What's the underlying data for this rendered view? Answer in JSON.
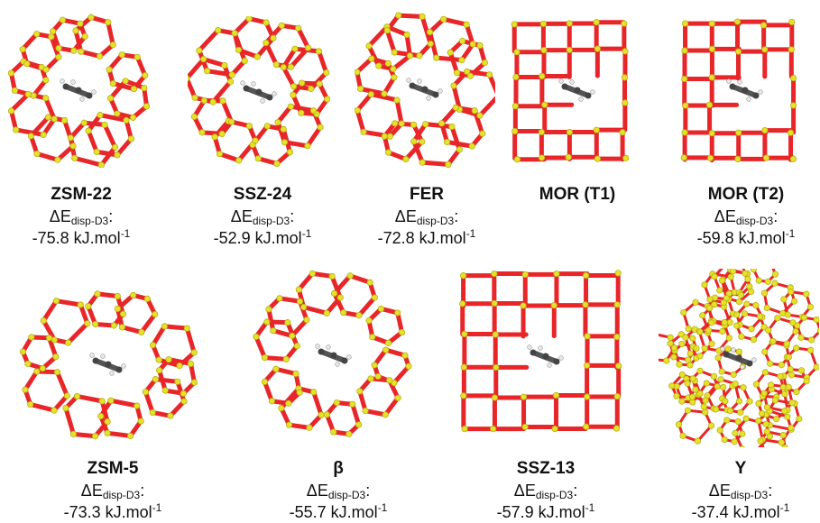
{
  "panels": [
    {
      "name": "ZSM-22",
      "energy_label": "ΔE",
      "energy_sub": "disp-D3",
      "colon": ":",
      "value": "-75.8 kJ.mol",
      "unit_exp": "-1"
    },
    {
      "name": "SSZ-24",
      "energy_label": "ΔE",
      "energy_sub": "disp-D3",
      "colon": ":",
      "value": "-52.9 kJ.mol",
      "unit_exp": "-1"
    },
    {
      "name": "FER",
      "energy_label": "ΔE",
      "energy_sub": "disp-D3",
      "colon": ":",
      "value": "-72.8 kJ.mol",
      "unit_exp": "-1"
    },
    {
      "name": "MOR (T1)",
      "energy_label": "",
      "energy_sub": "",
      "colon": "",
      "value": "",
      "unit_exp": ""
    },
    {
      "name": "MOR (T2)",
      "energy_label": "ΔE",
      "energy_sub": "disp-D3",
      "colon": ":",
      "value": "-59.8 kJ.mol",
      "unit_exp": "-1"
    },
    {
      "name": "ZSM-5",
      "energy_label": "ΔE",
      "energy_sub": "disp-D3",
      "colon": ":",
      "value": "-73.3 kJ.mol",
      "unit_exp": "-1"
    },
    {
      "name": "β",
      "energy_label": "ΔE",
      "energy_sub": "disp-D3",
      "colon": ":",
      "value": "-55.7 kJ.mol",
      "unit_exp": "-1"
    },
    {
      "name": "SSZ-13",
      "energy_label": "ΔE",
      "energy_sub": "disp-D3",
      "colon": ":",
      "value": "-57.9 kJ.mol",
      "unit_exp": "-1"
    },
    {
      "name": "Y",
      "energy_label": "ΔE",
      "energy_sub": "disp-D3",
      "colon": ":",
      "value": "-37.4 kJ.mol",
      "unit_exp": "-1"
    }
  ],
  "colors": {
    "oxygen": "#e8262a",
    "silicon": "#e6e22a",
    "carbon": "#555555",
    "hydrogen": "#e8e8e8"
  }
}
